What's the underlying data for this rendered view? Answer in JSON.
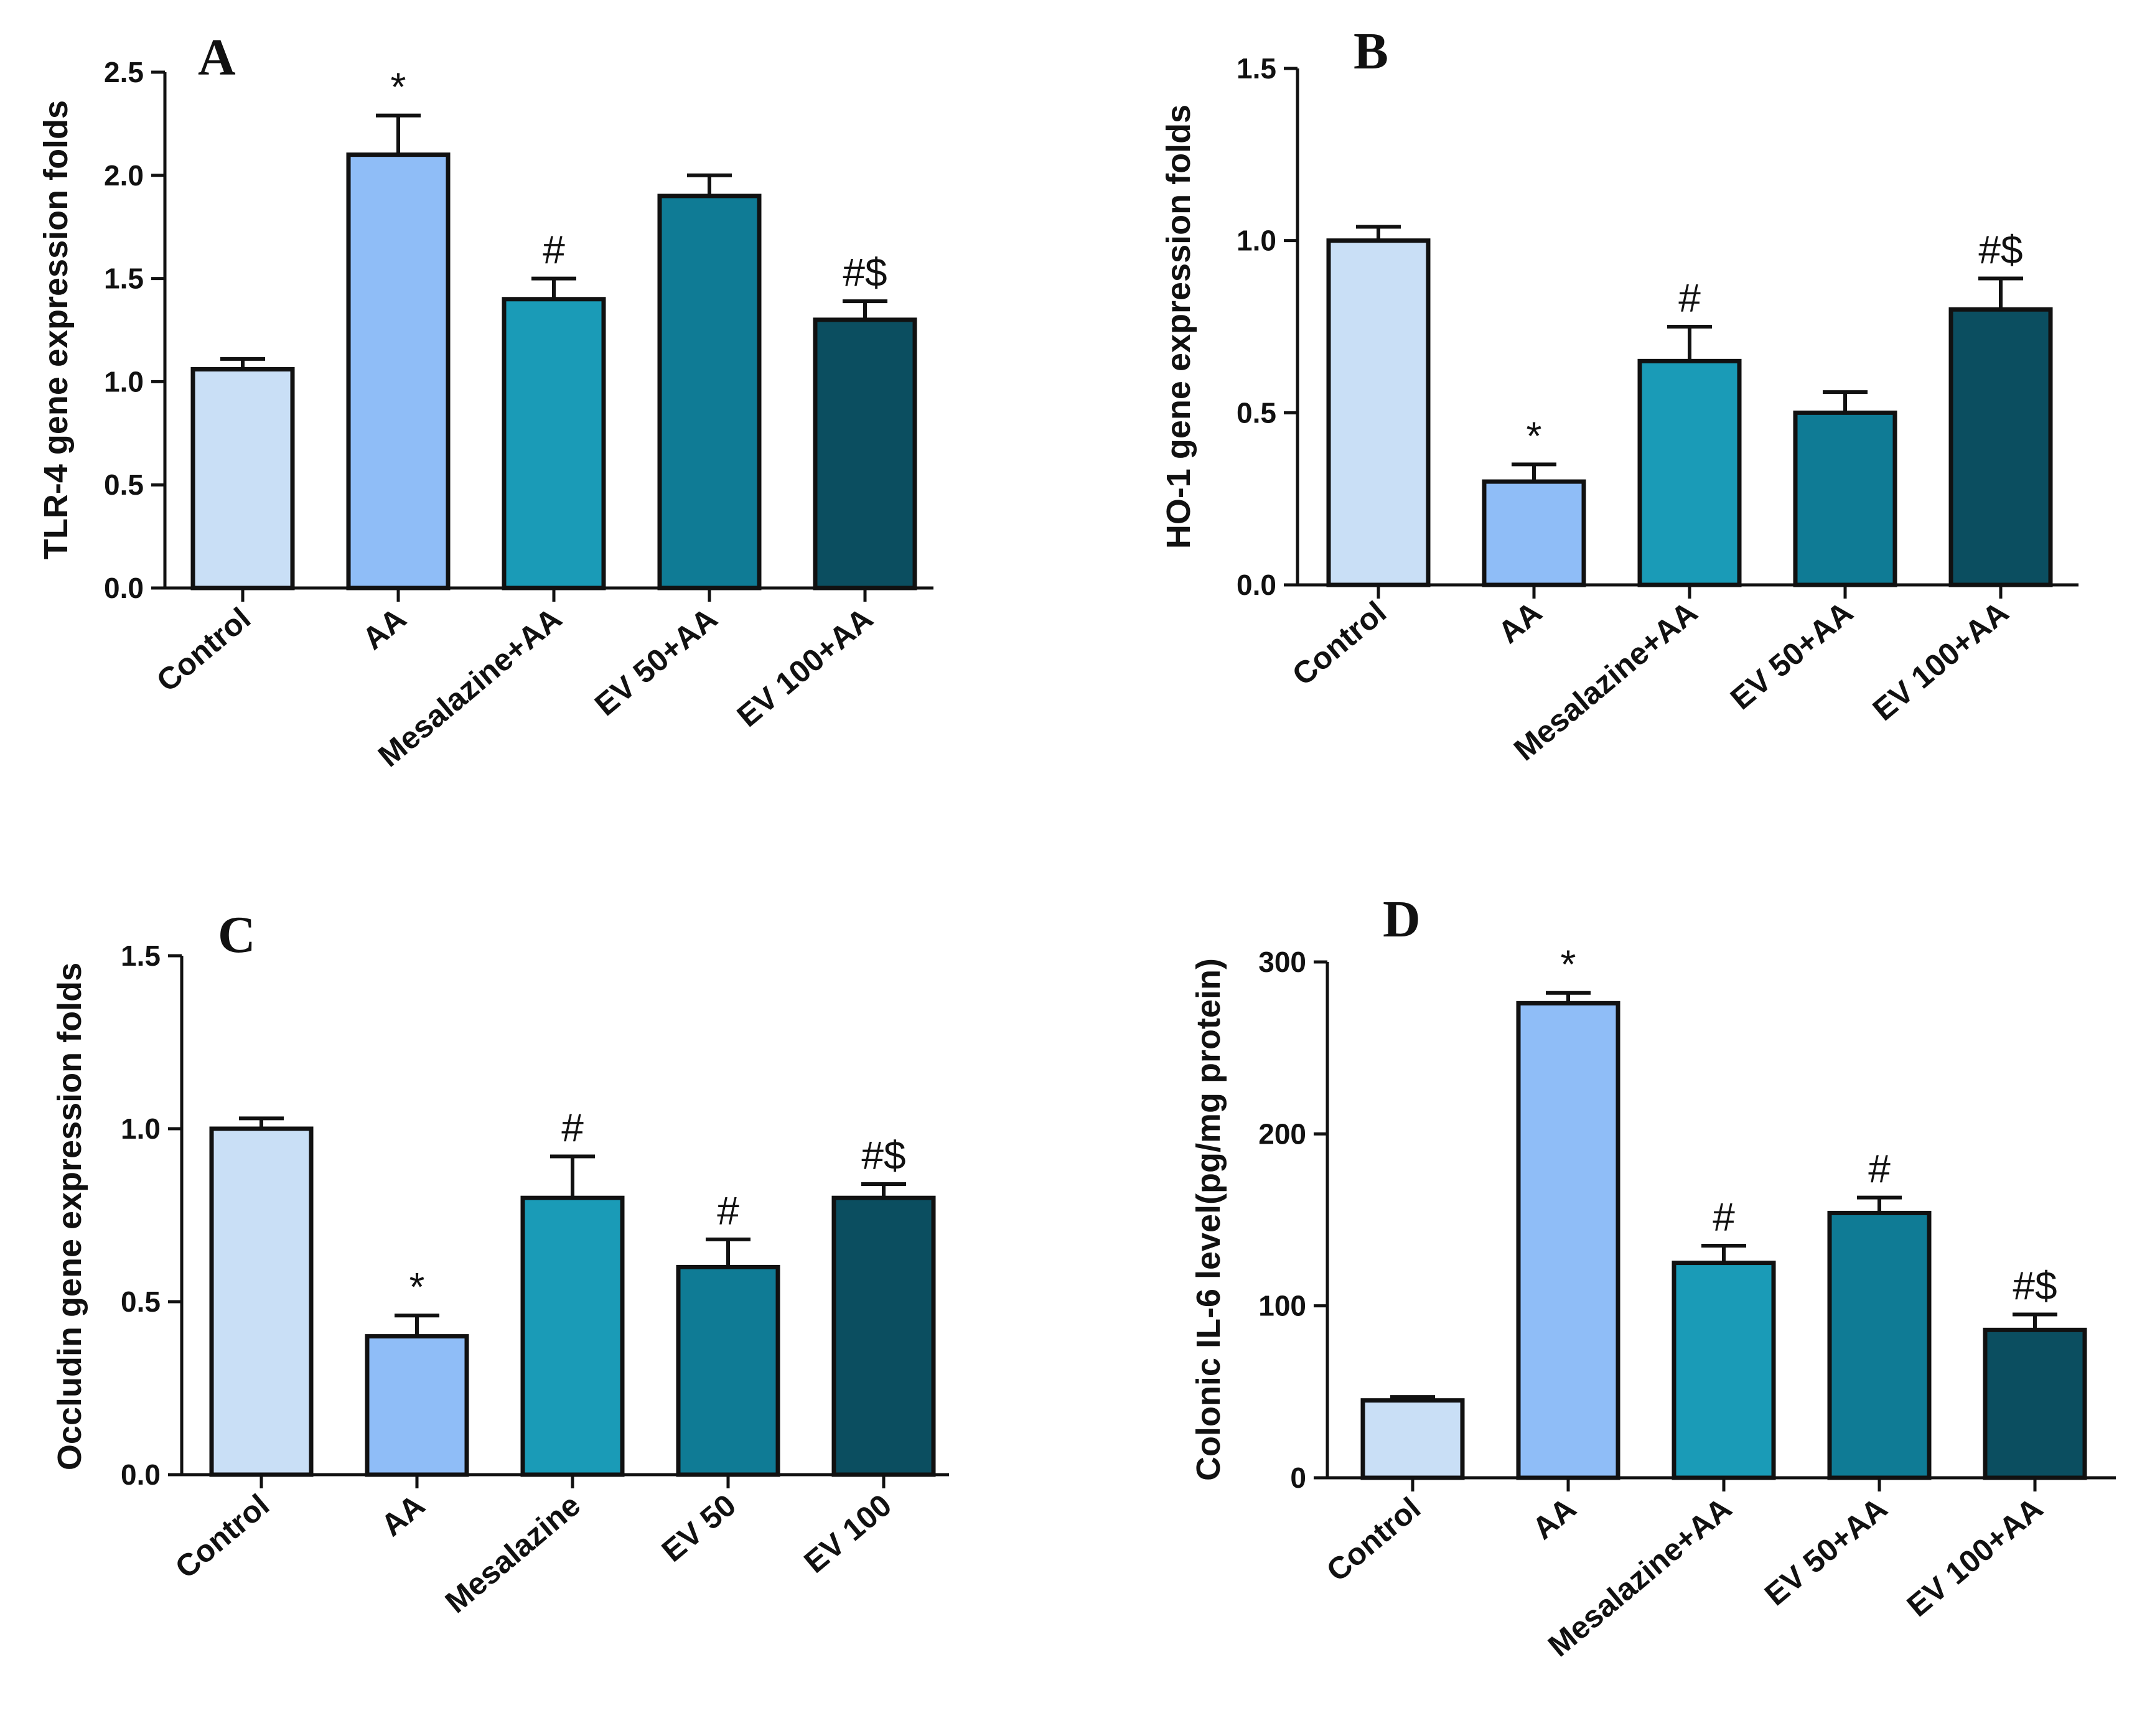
{
  "chart_data": [
    {
      "panel": "A",
      "type": "bar",
      "ylabel": "TLR-4 gene expression folds",
      "categories": [
        "Control",
        "AA",
        "Mesalazine+AA",
        "EV 50+AA",
        "EV 100+AA"
      ],
      "values": [
        1.06,
        2.1,
        1.4,
        1.9,
        1.3
      ],
      "errors": [
        0.05,
        0.19,
        0.1,
        0.1,
        0.09
      ],
      "annotations": [
        "",
        "*",
        "#",
        "",
        "#$"
      ],
      "ylim": [
        0,
        2.5
      ],
      "yticks": [
        "0.0",
        "0.5",
        "1.0",
        "1.5",
        "2.0",
        "2.5"
      ],
      "colors": [
        "#c9dff6",
        "#8fbdf7",
        "#1a9bb7",
        "#0f7b95",
        "#0b4e60"
      ]
    },
    {
      "panel": "B",
      "type": "bar",
      "ylabel": "HO-1 gene expression folds",
      "categories": [
        "Control",
        "AA",
        "Mesalazine+AA",
        "EV 50+AA",
        "EV 100+AA"
      ],
      "values": [
        1.0,
        0.3,
        0.65,
        0.5,
        0.8
      ],
      "errors": [
        0.04,
        0.05,
        0.1,
        0.06,
        0.09
      ],
      "annotations": [
        "",
        "*",
        "#",
        "",
        "#$"
      ],
      "ylim": [
        0,
        1.5
      ],
      "yticks": [
        "0.0",
        "0.5",
        "1.0",
        "1.5"
      ],
      "colors": [
        "#c9dff6",
        "#8fbdf7",
        "#1a9bb7",
        "#0f7b95",
        "#0b4e60"
      ]
    },
    {
      "panel": "C",
      "type": "bar",
      "ylabel": "Occludin gene expression folds",
      "categories": [
        "Control",
        "AA",
        "Mesalazine",
        "EV 50",
        "EV 100"
      ],
      "values": [
        1.0,
        0.4,
        0.8,
        0.6,
        0.8
      ],
      "errors": [
        0.03,
        0.06,
        0.12,
        0.08,
        0.04
      ],
      "annotations": [
        "",
        "*",
        "#",
        "#",
        "#$"
      ],
      "ylim": [
        0,
        1.5
      ],
      "yticks": [
        "0.0",
        "0.5",
        "1.0",
        "1.5"
      ],
      "colors": [
        "#c9dff6",
        "#8fbdf7",
        "#1a9bb7",
        "#0f7b95",
        "#0b4e60"
      ]
    },
    {
      "panel": "D",
      "type": "bar",
      "ylabel": "Colonic IL-6 level(pg/mg protein)",
      "categories": [
        "Control",
        "AA",
        "Mesalazine+AA",
        "EV 50+AA",
        "EV 100+AA"
      ],
      "values": [
        45,
        276,
        125,
        154,
        86
      ],
      "errors": [
        2,
        6,
        10,
        9,
        9
      ],
      "annotations": [
        "",
        "*",
        "#",
        "#",
        "#$"
      ],
      "ylim": [
        0,
        300
      ],
      "yticks": [
        "0",
        "100",
        "200",
        "300"
      ],
      "colors": [
        "#c9dff6",
        "#8fbdf7",
        "#1a9bb7",
        "#0f7b95",
        "#0b4e60"
      ]
    }
  ]
}
